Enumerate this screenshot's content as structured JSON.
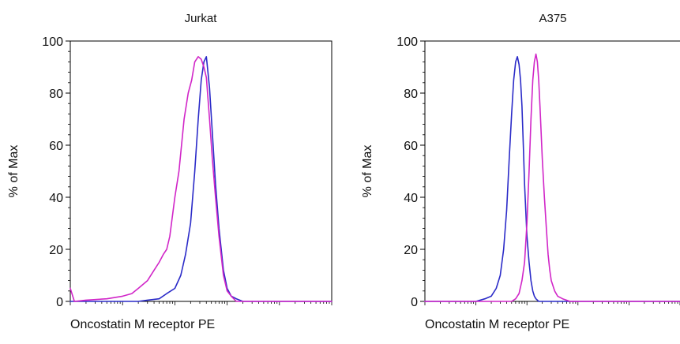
{
  "chart_data": [
    {
      "type": "line",
      "title": "Jurkat",
      "xlabel": "Oncostatin M receptor PE",
      "ylabel": "% of Max",
      "xscale": "log",
      "xlim": [
        0.1,
        10000
      ],
      "ylim": [
        0,
        100
      ],
      "yticks": [
        0,
        20,
        40,
        60,
        80,
        100
      ],
      "grid": false,
      "legend": "none",
      "series": [
        {
          "color": "#2b2bc8",
          "x": [
            0.1,
            0.3,
            1,
            2,
            3,
            5,
            7,
            10,
            13,
            16,
            20,
            24,
            28,
            32,
            36,
            40,
            46,
            52,
            60,
            70,
            85,
            100,
            120,
            150,
            200,
            1000,
            10000
          ],
          "y": [
            0,
            0,
            0,
            0,
            0.5,
            1,
            3,
            5,
            10,
            18,
            30,
            50,
            70,
            85,
            92,
            94,
            82,
            65,
            45,
            28,
            12,
            5,
            2,
            1,
            0,
            0,
            0
          ]
        },
        {
          "color": "#d126c8",
          "x": [
            0.1,
            0.12,
            0.2,
            0.5,
            1,
            1.5,
            2,
            3,
            4,
            5,
            6,
            7,
            8,
            10,
            12,
            15,
            18,
            21,
            24,
            28,
            32,
            36,
            40,
            46,
            52,
            60,
            70,
            85,
            100,
            120,
            150,
            1000,
            10000
          ],
          "y": [
            5,
            0,
            0.5,
            1,
            2,
            3,
            5,
            8,
            12,
            15,
            18,
            20,
            25,
            40,
            50,
            70,
            80,
            85,
            92,
            94,
            93,
            90,
            86,
            70,
            55,
            40,
            25,
            10,
            4,
            2,
            0,
            0,
            0
          ]
        }
      ]
    },
    {
      "type": "line",
      "title": "A375",
      "xlabel": "Oncostatin M receptor PE",
      "ylabel": "% of Max",
      "xscale": "log",
      "xlim": [
        0.1,
        10000
      ],
      "ylim": [
        0,
        100
      ],
      "yticks": [
        0,
        20,
        40,
        60,
        80,
        100
      ],
      "grid": false,
      "legend": "none",
      "series": [
        {
          "color": "#2b2bc8",
          "x": [
            0.1,
            0.5,
            1,
            1.5,
            2,
            2.5,
            3,
            3.5,
            4,
            4.5,
            5,
            5.5,
            6,
            6.5,
            7,
            7.5,
            8,
            8.5,
            9,
            10,
            11,
            12,
            13,
            14,
            15,
            17,
            20,
            100,
            10000
          ],
          "y": [
            0,
            0,
            0,
            1,
            2,
            5,
            10,
            20,
            35,
            55,
            72,
            85,
            92,
            94,
            91,
            85,
            75,
            60,
            45,
            25,
            15,
            8,
            4,
            2,
            1,
            0,
            0,
            0,
            0
          ]
        },
        {
          "color": "#d126c8",
          "x": [
            0.1,
            5,
            6,
            7,
            8,
            9,
            10,
            11,
            12,
            13,
            14,
            15,
            16,
            17,
            18,
            20,
            22,
            24,
            26,
            28,
            30,
            35,
            40,
            50,
            70,
            100,
            1000,
            10000
          ],
          "y": [
            0,
            0,
            1,
            3,
            8,
            15,
            30,
            50,
            70,
            85,
            92,
            95,
            92,
            85,
            75,
            55,
            40,
            28,
            18,
            12,
            8,
            4,
            2,
            1,
            0,
            0,
            0,
            0
          ]
        }
      ]
    }
  ]
}
